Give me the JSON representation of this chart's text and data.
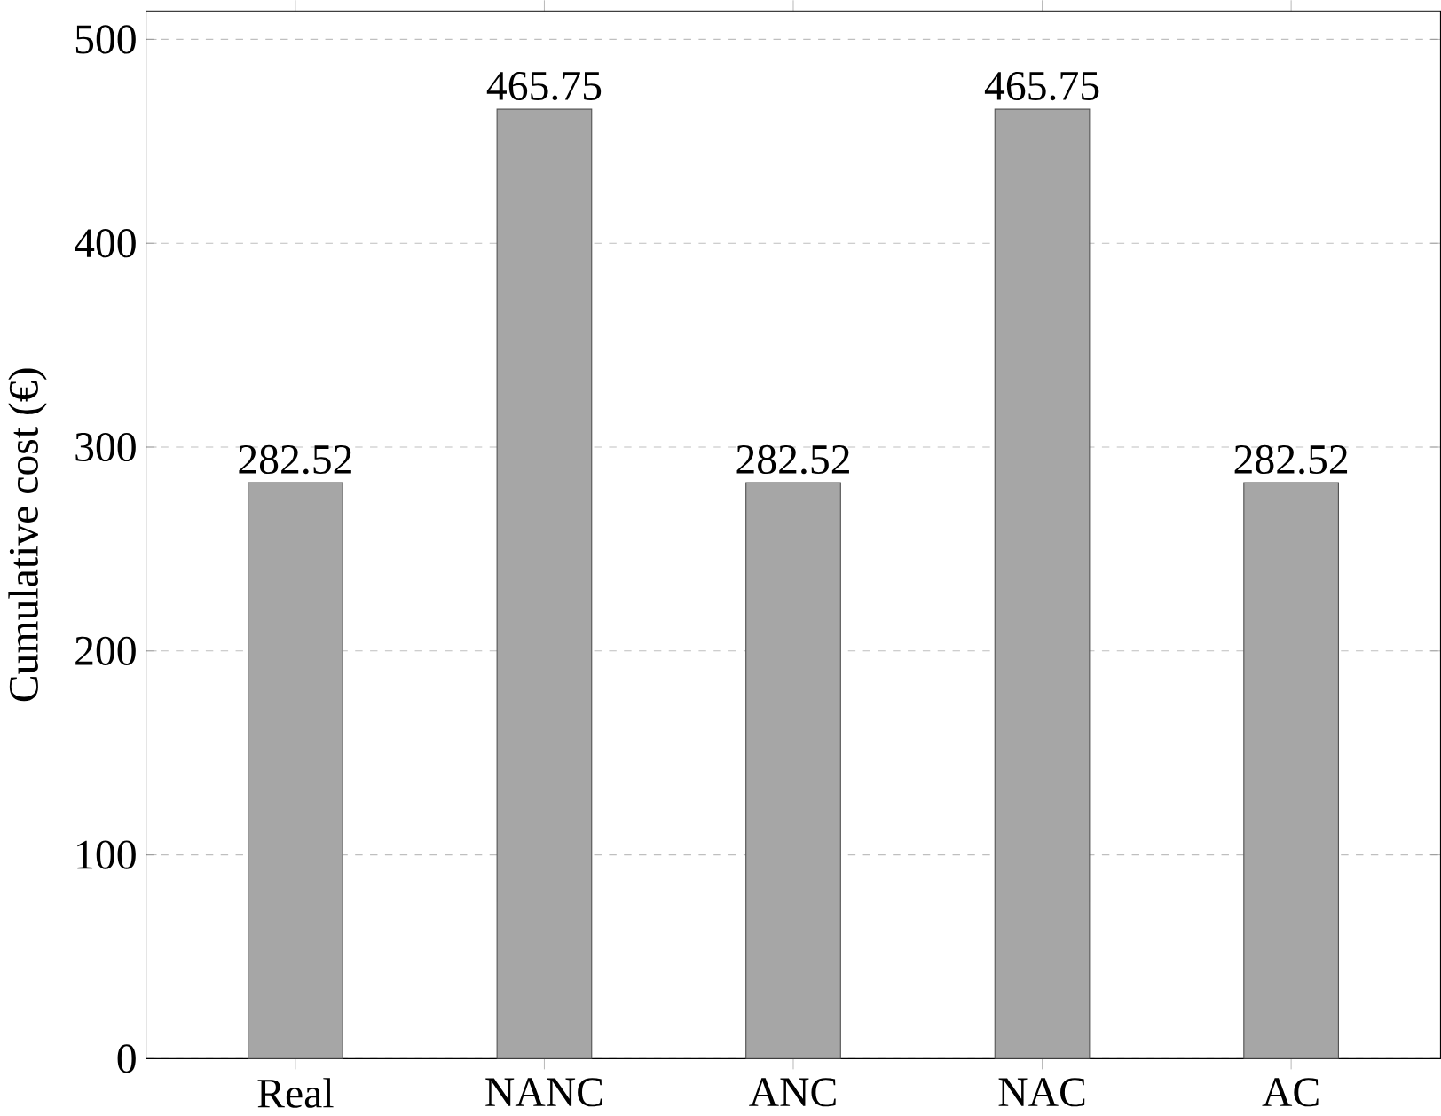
{
  "chart_data": {
    "type": "bar",
    "ylabel": "Cumulative cost (€)",
    "categories": [
      "Real",
      "NANC",
      "ANC",
      "NAC",
      "AC"
    ],
    "values": [
      282.52,
      465.75,
      282.52,
      465.75,
      282.52
    ],
    "color": "#a6a6a6",
    "ylim": [
      0,
      514
    ],
    "yticks": [
      0,
      100,
      200,
      300,
      400,
      500
    ],
    "grid": "y",
    "data_labels": true
  }
}
